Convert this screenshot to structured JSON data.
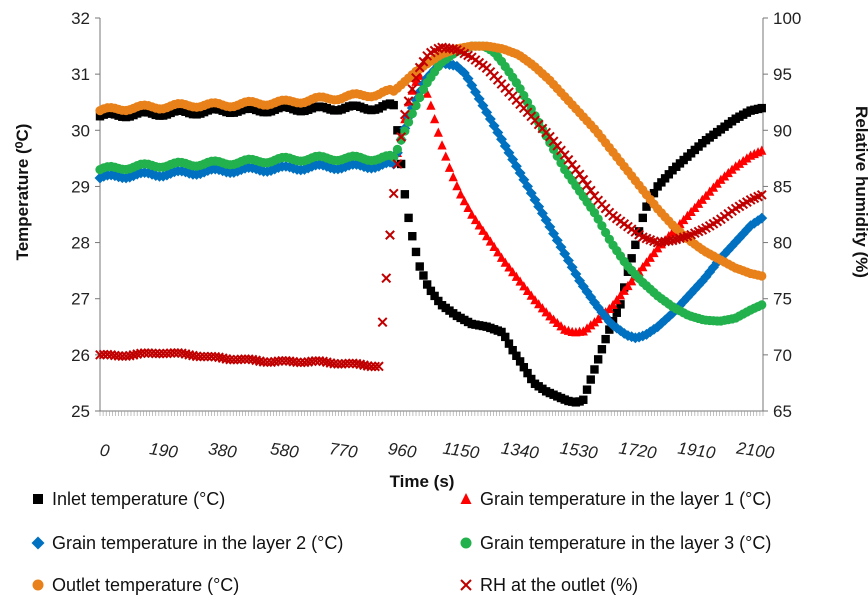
{
  "chart_data": {
    "type": "scatter",
    "xlabel": "Time (s)",
    "ylabel": "Temperature (⁰C)",
    "ylabel_right": "Relative humidity (%)",
    "xlim": [
      0,
      2140
    ],
    "ylim": [
      25,
      32
    ],
    "ylim_right": [
      65,
      100
    ],
    "x_ticks": [
      0,
      190,
      380,
      580,
      770,
      960,
      1150,
      1340,
      1530,
      1720,
      1910,
      2100
    ],
    "x_tick_labels": [
      "0",
      "190",
      "380",
      "580",
      "770",
      "960",
      "1150",
      "1340",
      "1530",
      "1720",
      "1910",
      "2100"
    ],
    "y_ticks": [
      25,
      26,
      27,
      28,
      29,
      30,
      31,
      32
    ],
    "y_tick_labels": [
      "25",
      "26",
      "27",
      "28",
      "29",
      "30",
      "31",
      "32"
    ],
    "y_ticks_right": [
      65,
      70,
      75,
      80,
      85,
      90,
      95,
      100
    ],
    "y_tick_labels_right": [
      "65",
      "70",
      "75",
      "80",
      "85",
      "90",
      "95",
      "100"
    ],
    "grid": false,
    "legend_position": "bottom",
    "series": [
      {
        "name": "Inlet temperature (°C)",
        "color": "#000000",
        "marker": "square",
        "axis": "left",
        "x": [
          0,
          100,
          200,
          300,
          400,
          500,
          600,
          700,
          800,
          900,
          950,
          960,
          980,
          1000,
          1030,
          1060,
          1100,
          1150,
          1200,
          1250,
          1300,
          1330,
          1360,
          1400,
          1440,
          1480,
          1510,
          1540,
          1560,
          1600,
          1640,
          1680,
          1700,
          1730,
          1760,
          1800,
          1850,
          1900,
          1950,
          2000,
          2050,
          2100,
          2140
        ],
        "y": [
          30.25,
          30.28,
          30.3,
          30.32,
          30.35,
          30.35,
          30.38,
          30.38,
          30.4,
          30.4,
          30.45,
          30.0,
          29.0,
          28.3,
          27.6,
          27.2,
          26.9,
          26.7,
          26.55,
          26.5,
          26.4,
          26.1,
          25.85,
          25.5,
          25.35,
          25.25,
          25.18,
          25.15,
          25.2,
          25.8,
          26.4,
          26.9,
          27.4,
          28.0,
          28.6,
          29.0,
          29.3,
          29.55,
          29.8,
          30.0,
          30.2,
          30.35,
          30.4
        ]
      },
      {
        "name": "Grain temperature in the layer 1  (°C)",
        "color": "#ff0000",
        "marker": "triangle",
        "axis": "left",
        "x": [
          960,
          980,
          1000,
          1030,
          1060,
          1080,
          1100,
          1130,
          1160,
          1200,
          1250,
          1300,
          1350,
          1400,
          1450,
          1500,
          1530,
          1560,
          1600,
          1650,
          1700,
          1750,
          1800,
          1850,
          1900,
          1950,
          2000,
          2050,
          2100,
          2140
        ],
        "y": [
          29.6,
          30.1,
          30.6,
          31.0,
          30.6,
          30.2,
          29.8,
          29.3,
          28.9,
          28.5,
          28.1,
          27.7,
          27.35,
          27.0,
          26.7,
          26.45,
          26.4,
          26.42,
          26.6,
          26.85,
          27.2,
          27.55,
          27.9,
          28.2,
          28.5,
          28.8,
          29.1,
          29.35,
          29.55,
          29.65
        ]
      },
      {
        "name": "Grain temperature in the layer 2  (°C)",
        "color": "#0070c0",
        "marker": "diamond",
        "axis": "left",
        "x": [
          0,
          100,
          200,
          300,
          400,
          500,
          600,
          700,
          800,
          900,
          950,
          970,
          1000,
          1050,
          1100,
          1150,
          1180,
          1200,
          1250,
          1300,
          1350,
          1400,
          1450,
          1500,
          1550,
          1600,
          1650,
          1700,
          1730,
          1760,
          1800,
          1850,
          1900,
          1950,
          2000,
          2050,
          2100,
          2140
        ],
        "y": [
          29.15,
          29.2,
          29.22,
          29.25,
          29.28,
          29.3,
          29.32,
          29.35,
          29.35,
          29.37,
          29.4,
          29.8,
          30.3,
          30.9,
          31.2,
          31.15,
          31.0,
          30.8,
          30.3,
          29.8,
          29.3,
          28.8,
          28.3,
          27.8,
          27.3,
          26.9,
          26.55,
          26.35,
          26.3,
          26.35,
          26.5,
          26.75,
          27.05,
          27.35,
          27.7,
          28.0,
          28.3,
          28.45
        ]
      },
      {
        "name": "Grain temperature in the layer 3  (°C)",
        "color": "#22b14c",
        "marker": "circle",
        "axis": "left",
        "x": [
          0,
          100,
          200,
          300,
          400,
          500,
          600,
          700,
          800,
          900,
          950,
          970,
          1000,
          1050,
          1100,
          1150,
          1200,
          1240,
          1270,
          1300,
          1350,
          1400,
          1450,
          1500,
          1550,
          1600,
          1650,
          1700,
          1750,
          1800,
          1850,
          1900,
          1950,
          2000,
          2050,
          2100,
          2140
        ],
        "y": [
          29.3,
          29.35,
          29.38,
          29.4,
          29.42,
          29.45,
          29.48,
          29.5,
          29.5,
          29.5,
          29.52,
          29.8,
          30.2,
          30.8,
          31.2,
          31.4,
          31.5,
          31.5,
          31.4,
          31.2,
          30.8,
          30.3,
          29.8,
          29.3,
          28.9,
          28.5,
          28.0,
          27.6,
          27.3,
          27.05,
          26.85,
          26.7,
          26.62,
          26.6,
          26.65,
          26.8,
          26.9
        ]
      },
      {
        "name": "Outlet temperature  (°C)",
        "color": "#e8811a",
        "marker": "circle",
        "axis": "left",
        "x": [
          0,
          100,
          200,
          300,
          400,
          500,
          600,
          700,
          800,
          900,
          950,
          980,
          1020,
          1060,
          1100,
          1150,
          1200,
          1250,
          1300,
          1350,
          1400,
          1450,
          1500,
          1550,
          1600,
          1650,
          1700,
          1750,
          1800,
          1850,
          1900,
          1950,
          2000,
          2050,
          2100,
          2140
        ],
        "y": [
          30.35,
          30.4,
          30.42,
          30.45,
          30.45,
          30.48,
          30.5,
          30.55,
          30.6,
          30.65,
          30.7,
          30.85,
          31.05,
          31.2,
          31.35,
          31.45,
          31.5,
          31.5,
          31.45,
          31.35,
          31.15,
          30.9,
          30.6,
          30.3,
          30.0,
          29.65,
          29.3,
          28.95,
          28.6,
          28.3,
          28.05,
          27.85,
          27.7,
          27.55,
          27.45,
          27.4
        ]
      },
      {
        "name": "RH at the outlet (%)",
        "color": "#c00000",
        "marker": "cross",
        "axis": "right",
        "x": [
          0,
          50,
          100,
          150,
          200,
          250,
          300,
          350,
          400,
          450,
          500,
          550,
          600,
          650,
          700,
          750,
          800,
          850,
          900,
          930,
          950,
          965,
          980,
          1000,
          1030,
          1060,
          1100,
          1150,
          1200,
          1250,
          1300,
          1350,
          1400,
          1450,
          1500,
          1550,
          1600,
          1650,
          1700,
          1750,
          1800,
          1850,
          1900,
          1950,
          2000,
          2050,
          2100,
          2140
        ],
        "y": [
          70.0,
          69.9,
          70.0,
          70.1,
          70.2,
          70.1,
          70.0,
          69.8,
          69.7,
          69.6,
          69.5,
          69.4,
          69.4,
          69.4,
          69.4,
          69.3,
          69.2,
          69.1,
          69.0,
          78.7,
          85.0,
          88.0,
          91.0,
          93.0,
          95.5,
          96.8,
          97.4,
          97.2,
          96.5,
          95.5,
          94.0,
          92.5,
          91.0,
          89.5,
          87.8,
          86.0,
          84.0,
          82.5,
          81.5,
          80.5,
          80.0,
          80.2,
          80.6,
          81.2,
          82.0,
          83.0,
          83.8,
          84.3
        ]
      }
    ]
  }
}
